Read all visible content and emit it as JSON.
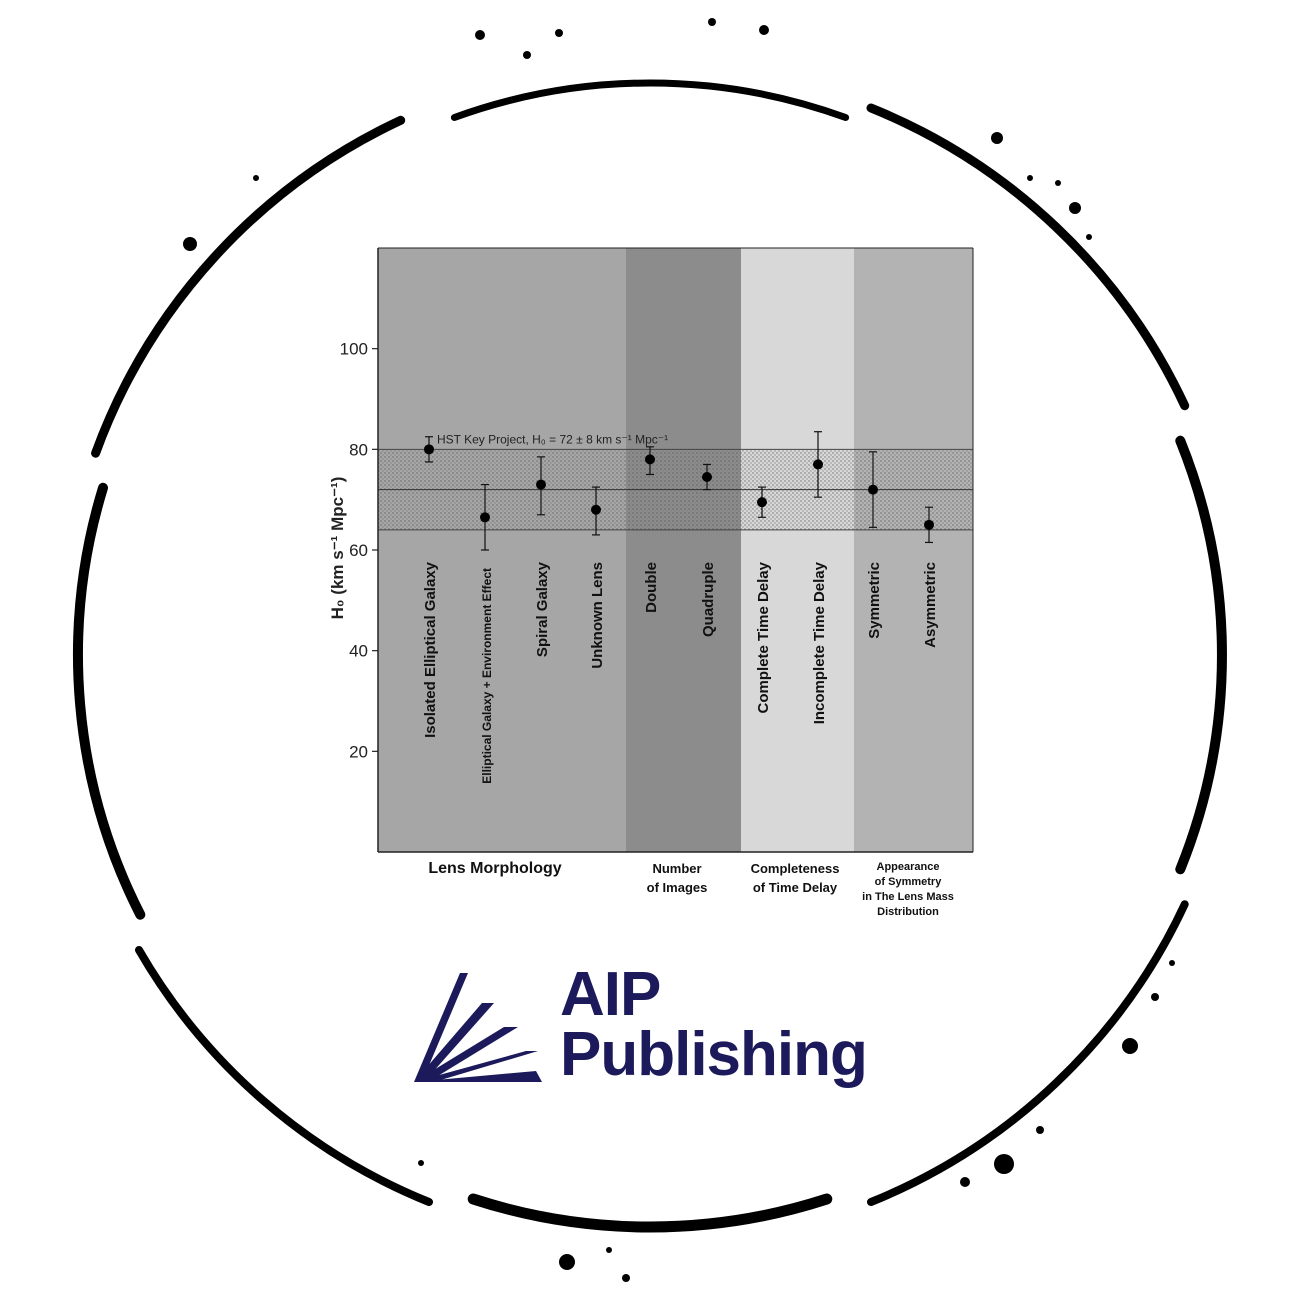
{
  "brand": {
    "line1": "AIP",
    "line2": "Publishing",
    "color": "#1c1a5a"
  },
  "colors": {
    "axis": "#222222",
    "point": "#000000",
    "band_fill": "#bdbdbd",
    "panel_1": "#a6a6a6",
    "panel_2": "#8c8c8c",
    "panel_3": "#d8d8d8",
    "panel_4": "#b3b3b3",
    "ring": "#000000"
  },
  "chart_data": {
    "type": "scatter",
    "ylabel": "H₀ (km s⁻¹ Mpc⁻¹)",
    "ylim": [
      0,
      120
    ],
    "yticks": [
      20,
      40,
      60,
      80,
      100
    ],
    "reference": {
      "label": "HST Key Project, H₀ = 72 ± 8 km s⁻¹ Mpc⁻¹",
      "value": 72,
      "low": 64,
      "high": 80
    },
    "groups": [
      {
        "name": "Lens Morphology",
        "label_lines": [
          "Lens Morphology"
        ],
        "color": "#a6a6a6",
        "count": 4
      },
      {
        "name": "Number of Images",
        "label_lines": [
          "Number",
          "of Images"
        ],
        "color": "#8c8c8c",
        "count": 2
      },
      {
        "name": "Completeness of Time Delay",
        "label_lines": [
          "Completeness",
          "of Time Delay"
        ],
        "color": "#d8d8d8",
        "count": 2
      },
      {
        "name": "Appearance of Symmetry in The Lens Mass Distribution",
        "label_lines": [
          "Appearance",
          "of Symmetry",
          "in The Lens Mass",
          "Distribution"
        ],
        "color": "#b3b3b3",
        "count": 2
      }
    ],
    "categories": [
      "Isolated Elliptical Galaxy",
      "Elliptical Galaxy + Environment Effect",
      "Spiral Galaxy",
      "Unknown Lens",
      "Double",
      "Quadruple",
      "Complete Time Delay",
      "Incomplete Time Delay",
      "Symmetric",
      "Asymmetric"
    ],
    "points": [
      {
        "y": 80,
        "low": 77.5,
        "high": 82.5
      },
      {
        "y": 66.5,
        "low": 60,
        "high": 73
      },
      {
        "y": 73,
        "low": 67,
        "high": 78.5
      },
      {
        "y": 68,
        "low": 63,
        "high": 72.5
      },
      {
        "y": 78,
        "low": 75,
        "high": 80.5
      },
      {
        "y": 74.5,
        "low": 72,
        "high": 77
      },
      {
        "y": 69.5,
        "low": 66.5,
        "high": 72.5
      },
      {
        "y": 77,
        "low": 70.5,
        "high": 83.5
      },
      {
        "y": 72,
        "low": 64.5,
        "high": 79.5
      },
      {
        "y": 65,
        "low": 61.5,
        "high": 68.5
      }
    ],
    "grid": false,
    "legend": "none"
  }
}
